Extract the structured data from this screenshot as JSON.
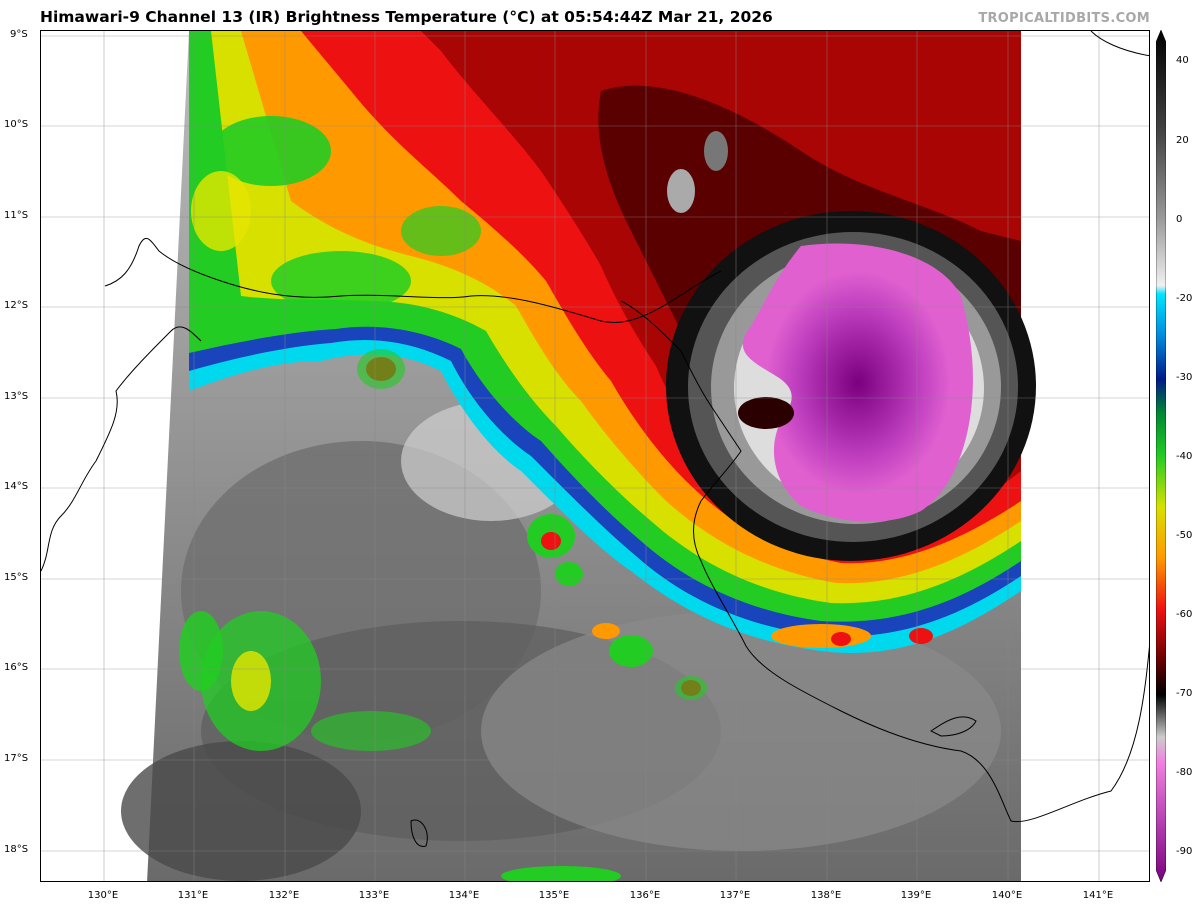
{
  "header": {
    "title": "Himawari-9 Channel 13 (IR) Brightness Temperature (°C) at 05:54:44Z Mar 21, 2026",
    "credit": "TROPICALTIDBITS.COM"
  },
  "map": {
    "lat_labels": [
      "9°S",
      "10°S",
      "11°S",
      "12°S",
      "13°S",
      "14°S",
      "15°S",
      "16°S",
      "17°S",
      "18°S"
    ],
    "lon_labels": [
      "130°E",
      "131°E",
      "132°E",
      "133°E",
      "134°E",
      "135°E",
      "136°E",
      "137°E",
      "138°E",
      "139°E",
      "140°E",
      "141°E"
    ]
  },
  "colorbar": {
    "labels": [
      "40",
      "20",
      "0",
      "-20",
      "-30",
      "-40",
      "-50",
      "-60",
      "-70",
      "-80",
      "-90"
    ],
    "colors": {
      "warm_gray": "#2a2a2a",
      "light_gray": "#d8d8d8",
      "cyan": "#00e5ff",
      "blue": "#0044cc",
      "green": "#22cc22",
      "yellow": "#e6e600",
      "orange": "#ff9900",
      "red": "#ee1111",
      "darkred": "#660000",
      "black": "#000000",
      "magenta": "#e060d0",
      "purple": "#7a0080"
    }
  }
}
